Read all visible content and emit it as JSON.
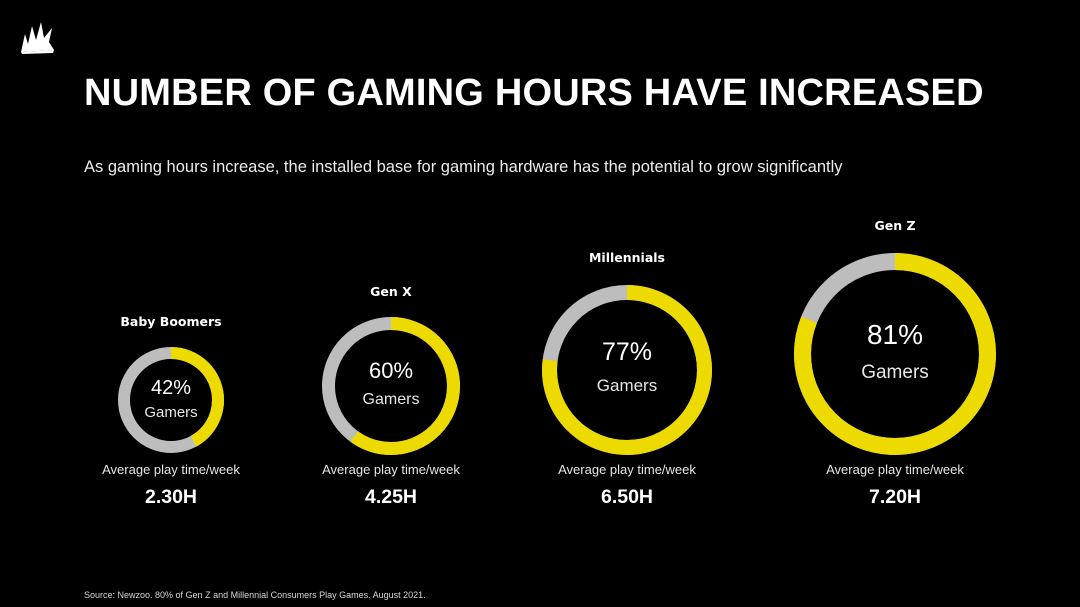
{
  "header": {
    "title": "NUMBER OF GAMING HOURS HAVE INCREASED",
    "subtitle": "As gaming hours increase, the installed base for gaming hardware has the potential to grow significantly"
  },
  "colors": {
    "accent": "#EDDA00",
    "remainder": "#BDBDBD",
    "background": "#000000"
  },
  "chart_data": {
    "type": "pie",
    "variant": "donut",
    "series": [
      {
        "name": "Baby Boomers",
        "value": 42,
        "value_label": "42%",
        "center_label": "Gamers",
        "caption": "Average play time/week",
        "hours": 2.3,
        "hours_label": "2.30H"
      },
      {
        "name": "Gen X",
        "value": 60,
        "value_label": "60%",
        "center_label": "Gamers",
        "caption": "Average play time/week",
        "hours": 4.25,
        "hours_label": "4.25H"
      },
      {
        "name": "Millennials",
        "value": 77,
        "value_label": "77%",
        "center_label": "Gamers",
        "caption": "Average play time/week",
        "hours": 6.5,
        "hours_label": "6.50H"
      },
      {
        "name": "Gen Z",
        "value": 81,
        "value_label": "81%",
        "center_label": "Gamers",
        "caption": "Average play time/week",
        "hours": 7.2,
        "hours_label": "7.20H"
      }
    ]
  },
  "footer": {
    "source": "Source: Newzoo. 80% of Gen Z and Millennial Consumers Play Games. August 2021."
  }
}
